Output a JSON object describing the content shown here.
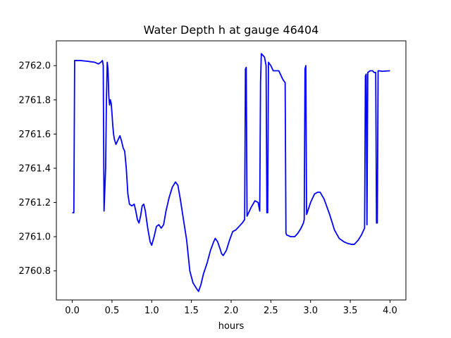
{
  "chart_data": {
    "type": "line",
    "title": "Water Depth h at gauge 46404",
    "xlabel": "hours",
    "ylabel": "",
    "xlim": [
      -0.2,
      4.2
    ],
    "ylim": [
      2760.63,
      2762.145
    ],
    "xticks": [
      0.0,
      0.5,
      1.0,
      1.5,
      2.0,
      2.5,
      3.0,
      3.5,
      4.0
    ],
    "xtick_labels": [
      "0.0",
      "0.5",
      "1.0",
      "1.5",
      "2.0",
      "2.5",
      "3.0",
      "3.5",
      "4.0"
    ],
    "yticks": [
      2760.8,
      2761.0,
      2761.2,
      2761.4,
      2761.6,
      2761.8,
      2762.0
    ],
    "ytick_labels": [
      "2760.8",
      "2761.0",
      "2761.2",
      "2761.4",
      "2761.6",
      "2761.8",
      "2762.0"
    ],
    "grid": false,
    "series": [
      {
        "color": "#0000ff",
        "x": [
          0.0,
          0.02,
          0.03,
          0.1,
          0.2,
          0.28,
          0.33,
          0.36,
          0.38,
          0.39,
          0.4,
          0.42,
          0.43,
          0.44,
          0.45,
          0.46,
          0.47,
          0.48,
          0.49,
          0.5,
          0.51,
          0.52,
          0.53,
          0.55,
          0.58,
          0.6,
          0.62,
          0.64,
          0.66,
          0.68,
          0.7,
          0.72,
          0.75,
          0.78,
          0.8,
          0.82,
          0.84,
          0.86,
          0.88,
          0.9,
          0.92,
          0.95,
          0.98,
          1.0,
          1.03,
          1.06,
          1.09,
          1.12,
          1.15,
          1.18,
          1.22,
          1.26,
          1.3,
          1.33,
          1.36,
          1.4,
          1.44,
          1.48,
          1.52,
          1.56,
          1.59,
          1.62,
          1.65,
          1.7,
          1.74,
          1.78,
          1.8,
          1.83,
          1.86,
          1.88,
          1.9,
          1.94,
          1.98,
          2.02,
          2.06,
          2.1,
          2.14,
          2.17,
          2.18,
          2.19,
          2.2,
          2.25,
          2.3,
          2.34,
          2.36,
          2.37,
          2.38,
          2.42,
          2.44,
          2.45,
          2.46,
          2.47,
          2.5,
          2.53,
          2.55,
          2.6,
          2.65,
          2.68,
          2.69,
          2.7,
          2.75,
          2.8,
          2.84,
          2.88,
          2.91,
          2.92,
          2.93,
          2.94,
          2.95,
          3.0,
          3.05,
          3.09,
          3.12,
          3.17,
          3.24,
          3.3,
          3.36,
          3.42,
          3.47,
          3.52,
          3.55,
          3.6,
          3.64,
          3.67,
          3.68,
          3.69,
          3.7,
          3.71,
          3.72,
          3.75,
          3.78,
          3.8,
          3.82,
          3.83,
          3.84,
          3.85,
          3.86,
          3.9,
          4.0
        ],
        "y": [
          2761.14,
          2761.14,
          2762.03,
          2762.03,
          2762.025,
          2762.02,
          2762.01,
          2762.02,
          2762.03,
          2762.0,
          2761.15,
          2761.4,
          2761.8,
          2762.02,
          2761.98,
          2761.82,
          2761.77,
          2761.8,
          2761.78,
          2761.72,
          2761.65,
          2761.6,
          2761.57,
          2761.54,
          2761.57,
          2761.59,
          2761.56,
          2761.52,
          2761.5,
          2761.4,
          2761.25,
          2761.19,
          2761.18,
          2761.19,
          2761.15,
          2761.1,
          2761.08,
          2761.12,
          2761.18,
          2761.19,
          2761.15,
          2761.05,
          2760.97,
          2760.95,
          2761.0,
          2761.06,
          2761.07,
          2761.05,
          2761.07,
          2761.15,
          2761.23,
          2761.29,
          2761.32,
          2761.3,
          2761.22,
          2761.1,
          2760.98,
          2760.8,
          2760.73,
          2760.7,
          2760.68,
          2760.72,
          2760.78,
          2760.85,
          2760.92,
          2760.97,
          2760.99,
          2760.97,
          2760.93,
          2760.9,
          2760.89,
          2760.92,
          2760.98,
          2761.03,
          2761.04,
          2761.06,
          2761.08,
          2761.1,
          2761.98,
          2761.99,
          2761.12,
          2761.17,
          2761.21,
          2761.2,
          2761.15,
          2761.9,
          2762.07,
          2762.05,
          2762.0,
          2761.14,
          2761.14,
          2762.02,
          2762.0,
          2761.97,
          2761.97,
          2761.97,
          2761.92,
          2761.9,
          2761.02,
          2761.01,
          2761.0,
          2761.0,
          2761.02,
          2761.05,
          2761.08,
          2761.1,
          2761.98,
          2762.0,
          2761.13,
          2761.2,
          2761.25,
          2761.26,
          2761.26,
          2761.22,
          2761.13,
          2761.04,
          2760.99,
          2760.97,
          2760.96,
          2760.955,
          2760.955,
          2760.98,
          2761.01,
          2761.04,
          2761.05,
          2761.94,
          2761.95,
          2761.07,
          2761.96,
          2761.97,
          2761.97,
          2761.96,
          2761.96,
          2761.08,
          2761.08,
          2761.97,
          2761.97,
          2761.967,
          2761.97
        ]
      }
    ]
  }
}
